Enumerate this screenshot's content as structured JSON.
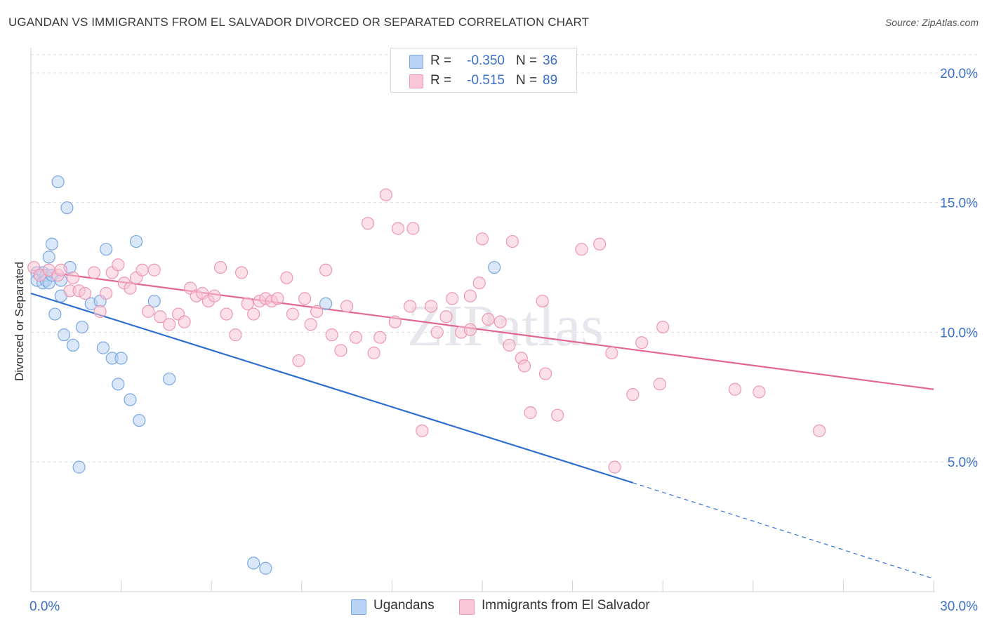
{
  "title": "UGANDAN VS IMMIGRANTS FROM EL SALVADOR DIVORCED OR SEPARATED CORRELATION CHART",
  "source": "Source: ZipAtlas.com",
  "watermark": "ZIPatlas",
  "stats": {
    "r_label": "R =",
    "n_label": "N =",
    "rows": [
      {
        "r": "-0.350",
        "n": "36"
      },
      {
        "r": "-0.515",
        "n": "89"
      }
    ]
  },
  "colors": {
    "blue_fill": "#b9d3f4",
    "blue_stroke": "#7aa7e3",
    "blue_line": "#2f6fd0",
    "pink_fill": "#f8c6d6",
    "pink_stroke": "#ee97b4",
    "pink_line": "#e26692",
    "grid": "#dedede",
    "tick_label": "#3a6fc9"
  },
  "chart_data": {
    "type": "scatter",
    "xlabel": "",
    "ylabel": "Divorced or Separated",
    "xlim": [
      0,
      30
    ],
    "ylim": [
      0,
      20.7
    ],
    "x_tick_labels": [
      "0.0%",
      "30.0%"
    ],
    "y_ticks": [
      5,
      10,
      15,
      20
    ],
    "y_tick_labels": [
      "5.0%",
      "10.0%",
      "15.0%",
      "20.0%"
    ],
    "grid": true,
    "legend": "bottom-center",
    "series": [
      {
        "name": "Ugandans",
        "color": "blue",
        "points": [
          [
            0.2,
            12.3
          ],
          [
            0.2,
            12.0
          ],
          [
            0.4,
            12.3
          ],
          [
            0.4,
            11.9
          ],
          [
            0.5,
            12.2
          ],
          [
            0.5,
            12.0
          ],
          [
            0.6,
            11.9
          ],
          [
            0.6,
            12.9
          ],
          [
            0.7,
            13.4
          ],
          [
            0.7,
            12.2
          ],
          [
            0.8,
            10.7
          ],
          [
            0.9,
            15.8
          ],
          [
            1.0,
            12.0
          ],
          [
            1.0,
            11.4
          ],
          [
            1.1,
            9.9
          ],
          [
            1.2,
            14.8
          ],
          [
            1.3,
            12.5
          ],
          [
            1.4,
            9.5
          ],
          [
            1.6,
            4.8
          ],
          [
            1.7,
            10.2
          ],
          [
            2.0,
            11.1
          ],
          [
            2.3,
            11.2
          ],
          [
            2.4,
            9.4
          ],
          [
            2.5,
            13.2
          ],
          [
            2.7,
            9.0
          ],
          [
            2.9,
            8.0
          ],
          [
            3.0,
            9.0
          ],
          [
            3.3,
            7.4
          ],
          [
            3.5,
            13.5
          ],
          [
            3.6,
            6.6
          ],
          [
            4.1,
            11.2
          ],
          [
            4.6,
            8.2
          ],
          [
            7.4,
            1.1
          ],
          [
            7.8,
            0.9
          ],
          [
            9.8,
            11.1
          ],
          [
            15.4,
            12.5
          ]
        ],
        "trend": {
          "x": [
            0,
            20.0
          ],
          "y": [
            11.5,
            4.2
          ]
        },
        "trend_dashed": {
          "x": [
            20.0,
            30.0
          ],
          "y": [
            4.2,
            0.5
          ]
        }
      },
      {
        "name": "Immigrants from El Salvador",
        "color": "pink",
        "points": [
          [
            0.1,
            12.5
          ],
          [
            0.3,
            12.2
          ],
          [
            0.6,
            12.4
          ],
          [
            0.9,
            12.2
          ],
          [
            1.0,
            12.4
          ],
          [
            1.3,
            11.6
          ],
          [
            1.4,
            12.1
          ],
          [
            1.6,
            11.6
          ],
          [
            1.8,
            11.5
          ],
          [
            2.1,
            12.3
          ],
          [
            2.3,
            10.8
          ],
          [
            2.5,
            11.5
          ],
          [
            2.7,
            12.3
          ],
          [
            2.9,
            12.6
          ],
          [
            3.1,
            11.9
          ],
          [
            3.3,
            11.7
          ],
          [
            3.5,
            12.1
          ],
          [
            3.7,
            12.4
          ],
          [
            3.9,
            10.8
          ],
          [
            4.1,
            12.4
          ],
          [
            4.3,
            10.6
          ],
          [
            4.6,
            10.3
          ],
          [
            4.9,
            10.7
          ],
          [
            5.1,
            10.4
          ],
          [
            5.3,
            11.7
          ],
          [
            5.5,
            11.4
          ],
          [
            5.7,
            11.5
          ],
          [
            5.9,
            11.2
          ],
          [
            6.1,
            11.4
          ],
          [
            6.3,
            12.5
          ],
          [
            6.5,
            10.7
          ],
          [
            6.8,
            9.9
          ],
          [
            7.0,
            12.3
          ],
          [
            7.2,
            11.1
          ],
          [
            7.4,
            10.7
          ],
          [
            7.6,
            11.2
          ],
          [
            7.8,
            11.3
          ],
          [
            8.0,
            11.2
          ],
          [
            8.2,
            11.3
          ],
          [
            8.5,
            12.1
          ],
          [
            8.7,
            10.7
          ],
          [
            8.9,
            8.9
          ],
          [
            9.1,
            11.3
          ],
          [
            9.3,
            10.3
          ],
          [
            9.5,
            10.8
          ],
          [
            9.8,
            12.4
          ],
          [
            10.0,
            9.9
          ],
          [
            10.3,
            9.3
          ],
          [
            10.5,
            11.0
          ],
          [
            10.8,
            9.8
          ],
          [
            11.2,
            14.2
          ],
          [
            11.4,
            9.2
          ],
          [
            11.6,
            9.8
          ],
          [
            11.8,
            15.3
          ],
          [
            12.1,
            10.4
          ],
          [
            12.2,
            14.0
          ],
          [
            12.6,
            11.0
          ],
          [
            12.7,
            14.0
          ],
          [
            13.0,
            6.2
          ],
          [
            13.3,
            11.0
          ],
          [
            13.5,
            10.0
          ],
          [
            13.8,
            10.6
          ],
          [
            14.0,
            11.3
          ],
          [
            14.3,
            10.0
          ],
          [
            14.6,
            11.4
          ],
          [
            14.9,
            11.9
          ],
          [
            15.0,
            13.6
          ],
          [
            15.2,
            10.5
          ],
          [
            15.6,
            10.4
          ],
          [
            15.9,
            9.5
          ],
          [
            16.0,
            13.5
          ],
          [
            16.3,
            9.0
          ],
          [
            16.4,
            8.7
          ],
          [
            16.6,
            6.9
          ],
          [
            17.0,
            11.2
          ],
          [
            17.1,
            8.4
          ],
          [
            17.5,
            6.8
          ],
          [
            18.3,
            13.2
          ],
          [
            18.9,
            13.4
          ],
          [
            19.3,
            9.2
          ],
          [
            19.4,
            4.8
          ],
          [
            20.0,
            7.6
          ],
          [
            20.3,
            9.6
          ],
          [
            20.9,
            8.0
          ],
          [
            21.0,
            10.2
          ],
          [
            23.4,
            7.8
          ],
          [
            24.2,
            7.7
          ],
          [
            26.2,
            6.2
          ],
          [
            14.6,
            10.1
          ]
        ],
        "trend": {
          "x": [
            0,
            30.0
          ],
          "y": [
            12.4,
            7.8
          ]
        }
      }
    ]
  }
}
